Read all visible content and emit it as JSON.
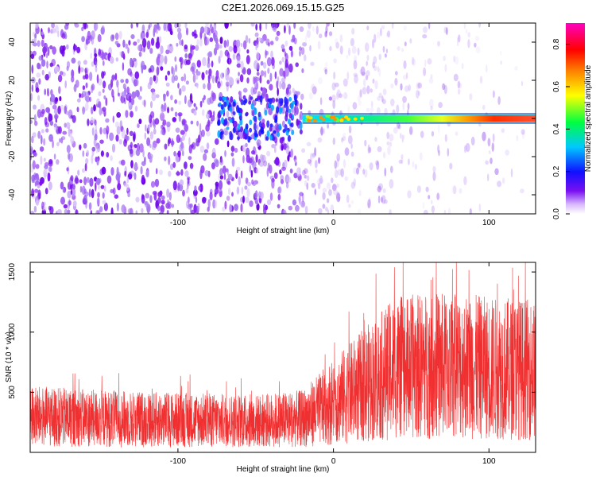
{
  "title": "C2E1.2026.069.15.15.G25",
  "colors": {
    "snr_line": "#f03030",
    "spectrogram_noise": "#7a1cf0",
    "axis": "#000000"
  },
  "chart_data": [
    {
      "type": "heatmap",
      "xlabel": "Height of straight line (km)",
      "ylabel": "Frequency (Hz)",
      "xlim": [
        -195,
        130
      ],
      "ylim": [
        -50,
        50
      ],
      "xticks": [
        -100,
        0,
        100
      ],
      "yticks": [
        -40,
        -20,
        0,
        20,
        40
      ],
      "signal_band": {
        "frequency": 0,
        "x_start": -20,
        "x_end": 130
      },
      "colorbar": {
        "label": "Normalized spectral amplitude",
        "range": [
          0.0,
          0.9
        ],
        "ticks": [
          0.0,
          0.2,
          0.4,
          0.6,
          0.8
        ]
      }
    },
    {
      "type": "line",
      "xlabel": "Height of straight line (km)",
      "ylabel": "SNR (10 * v/v)",
      "xlim": [
        -195,
        130
      ],
      "ylim": [
        0,
        1580
      ],
      "xticks": [
        -100,
        0,
        100
      ],
      "yticks": [
        500,
        1000,
        1500
      ],
      "series": [
        {
          "x": [
            -195,
            -150,
            -100,
            -50,
            -20,
            0,
            20,
            40,
            60,
            80,
            100,
            130
          ],
          "y": [
            300,
            280,
            270,
            260,
            280,
            420,
            560,
            700,
            720,
            720,
            700,
            690
          ]
        }
      ]
    }
  ]
}
